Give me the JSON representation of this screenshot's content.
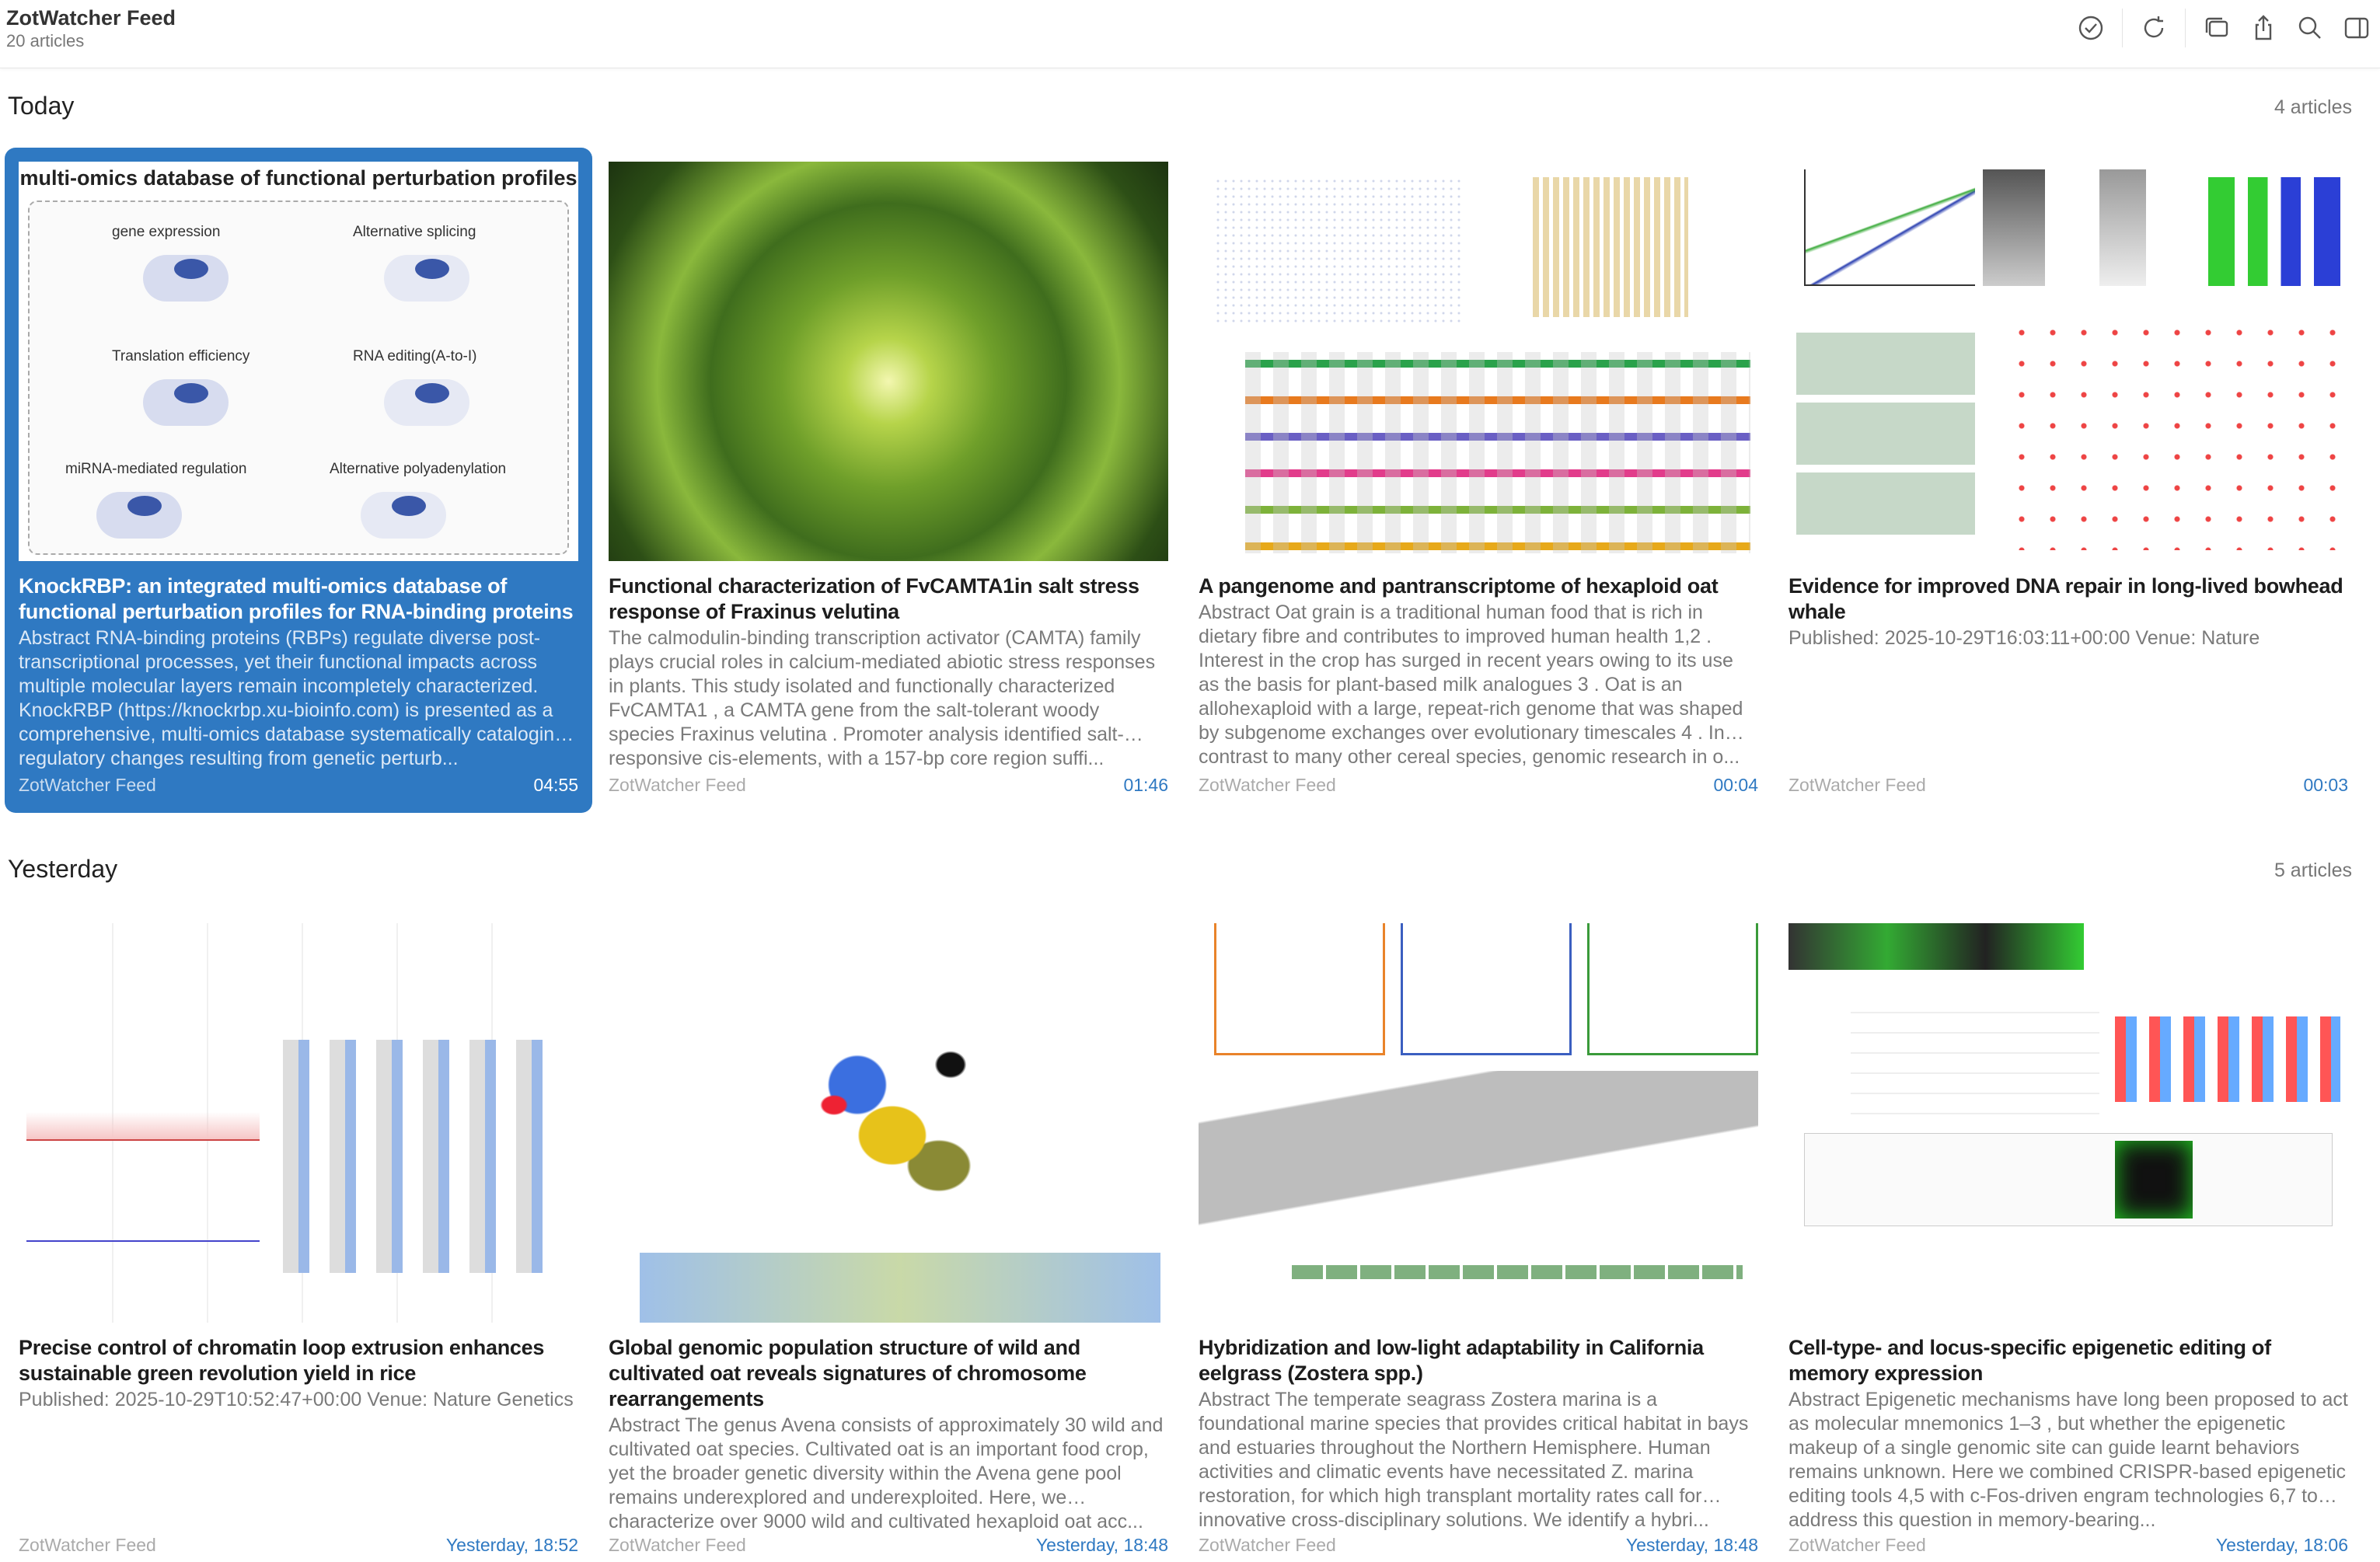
{
  "header": {
    "title": "ZotWatcher Feed",
    "subtitle": "20 articles",
    "tools": [
      "mark-read-icon",
      "refresh-icon",
      "duplicate-icon",
      "share-icon",
      "search-icon",
      "sidebar-icon"
    ]
  },
  "sections": [
    {
      "title": "Today",
      "count": "4 articles",
      "articles": [
        {
          "title": "KnockRBP: an integrated multi-omics database of functional perturbation profiles for RNA-binding proteins",
          "abstract": "Abstract RNA-binding proteins (RBPs) regulate diverse post-transcriptional processes, yet their functional impacts across multiple molecular layers remain incompletely characterized. KnockRBP (https://knockrbp.xu-bioinfo.com) is presented as a comprehensive, multi-omics database systematically cataloging regulatory changes resulting from genetic perturb...",
          "source": "ZotWatcher Feed",
          "time": "04:55",
          "selected": true,
          "figure": {
            "heading": "multi-omics database of functional perturbation profiles",
            "labels": [
              "gene expression",
              "Alternative splicing",
              "Translation efficiency",
              "RNA editing(A-to-I)",
              "miRNA-mediated regulation",
              "Alternative polyadenylation"
            ]
          }
        },
        {
          "title": "Functional characterization of FvCAMTA1in salt stress response of Fraxinus velutina",
          "abstract": "The calmodulin-binding transcription activator (CAMTA) family plays crucial roles in calcium-mediated abiotic stress responses in plants. This study isolated and functionally characterized FvCAMTA1 , a CAMTA gene from the salt-tolerant woody species Fraxinus velutina . Promoter analysis identified salt-responsive cis-elements, with a 157-bp core region suffi...",
          "source": "ZotWatcher Feed",
          "time": "01:46"
        },
        {
          "title": "A pangenome and pantranscriptome of hexaploid oat",
          "abstract": "Abstract Oat grain is a traditional human food that is rich in dietary fibre and contributes to improved human health 1,2 . Interest in the crop has surged in recent years owing to its use as the basis for plant-based milk analogues 3 . Oat is an allohexaploid with a large, repeat-rich genome that was shaped by subgenome exchanges over evolutionary timescales 4 . In contrast to many other cereal species, genomic research in o...",
          "source": "ZotWatcher Feed",
          "time": "00:04"
        },
        {
          "title": "Evidence for improved DNA repair in long-lived bowhead whale",
          "abstract": "Published: 2025-10-29T16:03:11+00:00 Venue: Nature",
          "source": "ZotWatcher Feed",
          "time": "00:03"
        }
      ]
    },
    {
      "title": "Yesterday",
      "count": "5 articles",
      "articles": [
        {
          "title": "Precise control of chromatin loop extrusion enhances sustainable green revolution yield in rice",
          "abstract": "Published: 2025-10-29T10:52:47+00:00 Venue: Nature Genetics",
          "source": "ZotWatcher Feed",
          "time": "Yesterday, 18:52"
        },
        {
          "title": "Global genomic population structure of wild and cultivated oat reveals signatures of chromosome rearrangements",
          "abstract": "Abstract The genus Avena consists of approximately 30 wild and cultivated oat species. Cultivated oat is an important food crop, yet the broader genetic diversity within the Avena gene pool remains underexplored and underexploited. Here, we characterize over 9000 wild and cultivated hexaploid oat acc...",
          "source": "ZotWatcher Feed",
          "time": "Yesterday, 18:48"
        },
        {
          "title": "Hybridization and low-light adaptability in California eelgrass (Zostera spp.)",
          "abstract": "Abstract The temperate seagrass Zostera marina is a foundational marine species that provides critical habitat in bays and estuaries throughout the Northern Hemisphere. Human activities and climatic events have necessitated Z. marina restoration, for which high transplant mortality rates call for innovative cross-disciplinary solutions. We identify a hybri...",
          "source": "ZotWatcher Feed",
          "time": "Yesterday, 18:48"
        },
        {
          "title": "Cell-type- and locus-specific epigenetic editing of memory expression",
          "abstract": "Abstract Epigenetic mechanisms have long been proposed to act as molecular mnemonics 1–3 , but whether the epigenetic makeup of a single genomic site can guide learnt behaviors remains unknown. Here we combined CRISPR-based epigenetic editing tools 4,5 with c-Fos-driven engram technologies 6,7 to address this question in memory-bearing...",
          "source": "ZotWatcher Feed",
          "time": "Yesterday, 18:06"
        }
      ]
    }
  ],
  "colors": {
    "accent": "#2f79c2",
    "selected_card": "#2f79c2"
  }
}
